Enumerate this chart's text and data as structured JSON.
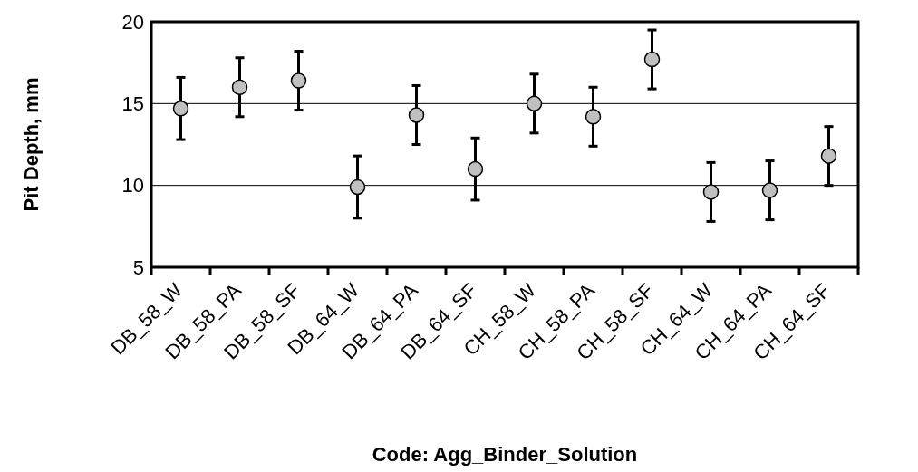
{
  "chart_data": {
    "type": "scatter",
    "xlabel": "Code: Agg_Binder_Solution",
    "ylabel": "Pit Depth, mm",
    "categories": [
      "DB_58_W",
      "DB_58_PA",
      "DB_58_SF",
      "DB_64_W",
      "DB_64_PA",
      "DB_64_SF",
      "CH_58_W",
      "CH_58_PA",
      "CH_58_SF",
      "CH_64_W",
      "CH_64_PA",
      "CH_64_SF"
    ],
    "series": [
      {
        "color": "#c0c0c0",
        "values": [
          14.7,
          16.0,
          16.4,
          9.9,
          14.3,
          11.0,
          15.0,
          14.2,
          17.7,
          9.6,
          9.7,
          11.8
        ],
        "errors": [
          1.9,
          1.8,
          1.8,
          1.9,
          1.8,
          1.9,
          1.8,
          1.8,
          1.8,
          1.8,
          1.8,
          1.8
        ]
      }
    ],
    "ylim": [
      5,
      20
    ],
    "yticks": [
      5,
      10,
      15,
      20
    ],
    "grid": "y",
    "marker": "circle"
  }
}
